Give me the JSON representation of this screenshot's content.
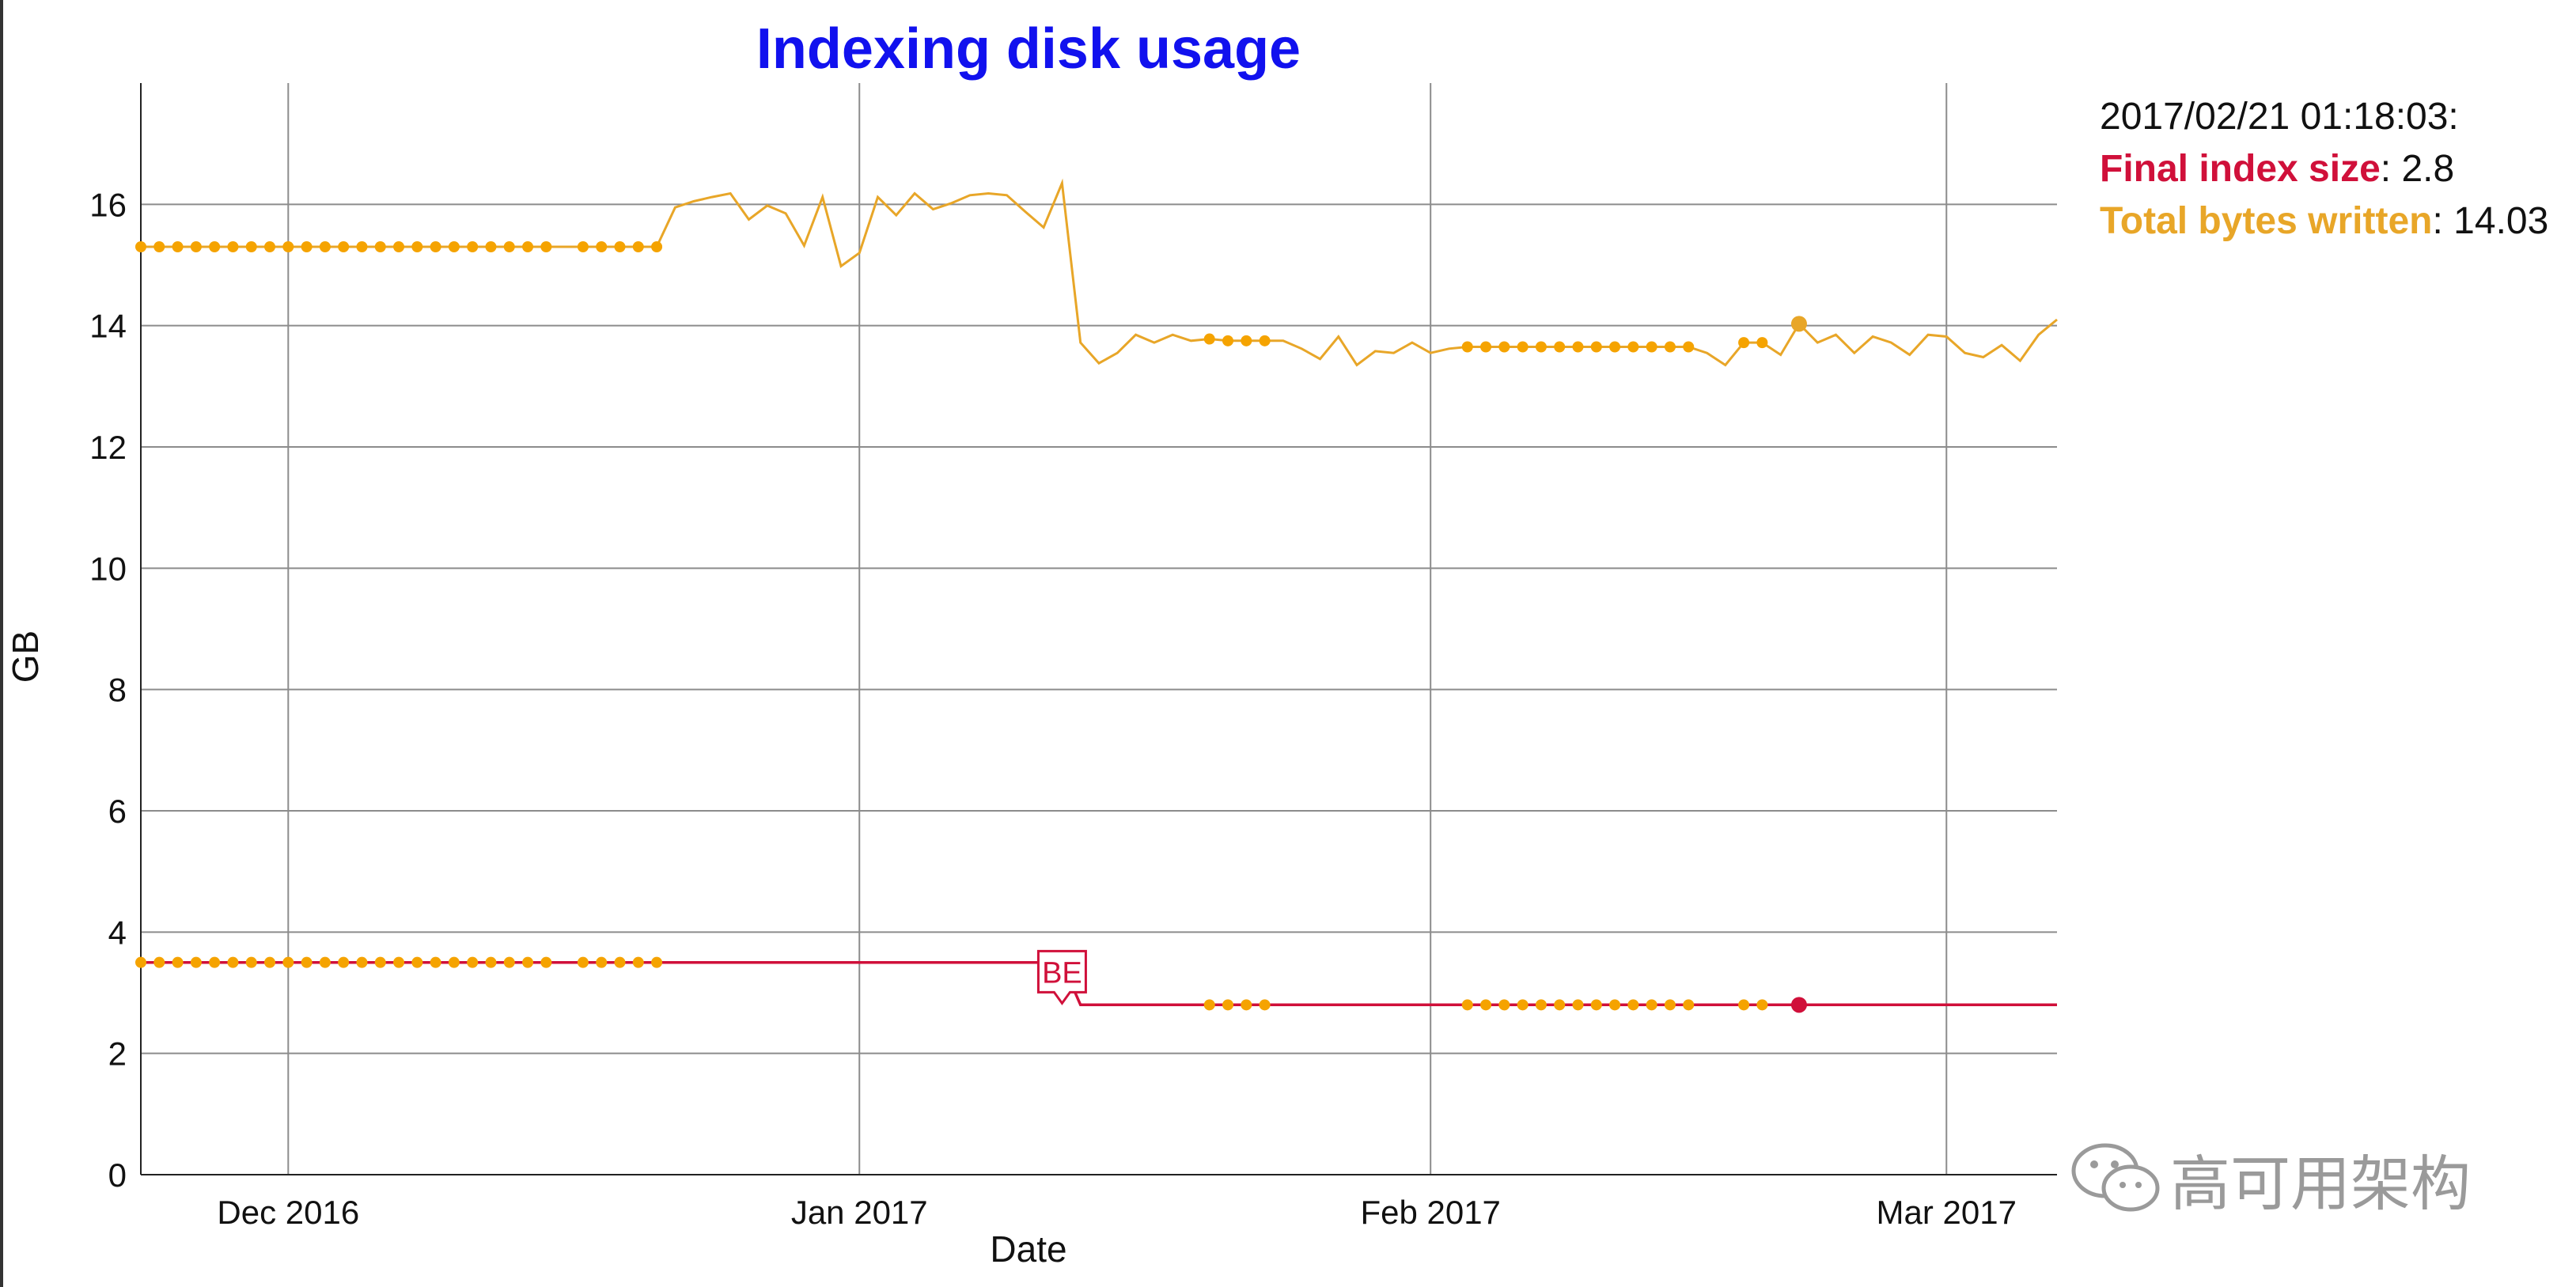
{
  "chart_data": {
    "type": "line",
    "title": "Indexing disk usage",
    "xlabel": "Date",
    "ylabel": "GB",
    "ylim": [
      0,
      18
    ],
    "yticks": [
      0,
      2,
      4,
      6,
      8,
      10,
      12,
      14,
      16
    ],
    "xlim": [
      "2016-11-23",
      "2017-03-07"
    ],
    "xticks": [
      {
        "date": "2016-12-01",
        "label": "Dec 2016"
      },
      {
        "date": "2017-01-01",
        "label": "Jan 2017"
      },
      {
        "date": "2017-02-01",
        "label": "Feb 2017"
      },
      {
        "date": "2017-03-01",
        "label": "Mar 2017"
      }
    ],
    "grid": true,
    "legend_position": "right",
    "series": [
      {
        "name": "Total bytes written",
        "color": "#e8a628",
        "dot_color": "#f5a300",
        "points": [
          [
            "2016-11-23",
            15.3
          ],
          [
            "2016-11-24",
            15.3
          ],
          [
            "2016-11-25",
            15.3
          ],
          [
            "2016-11-26",
            15.3
          ],
          [
            "2016-11-27",
            15.3
          ],
          [
            "2016-11-28",
            15.3
          ],
          [
            "2016-11-29",
            15.3
          ],
          [
            "2016-11-30",
            15.3
          ],
          [
            "2016-12-01",
            15.3
          ],
          [
            "2016-12-02",
            15.3
          ],
          [
            "2016-12-03",
            15.3
          ],
          [
            "2016-12-04",
            15.3
          ],
          [
            "2016-12-05",
            15.3
          ],
          [
            "2016-12-06",
            15.3
          ],
          [
            "2016-12-07",
            15.3
          ],
          [
            "2016-12-08",
            15.3
          ],
          [
            "2016-12-09",
            15.3
          ],
          [
            "2016-12-10",
            15.3
          ],
          [
            "2016-12-11",
            15.3
          ],
          [
            "2016-12-12",
            15.3
          ],
          [
            "2016-12-13",
            15.3
          ],
          [
            "2016-12-14",
            15.3
          ],
          [
            "2016-12-15",
            15.3
          ],
          [
            "2016-12-16",
            15.3
          ],
          [
            "2016-12-17",
            15.3
          ],
          [
            "2016-12-18",
            15.3
          ],
          [
            "2016-12-19",
            15.3
          ],
          [
            "2016-12-20",
            15.3
          ],
          [
            "2016-12-21",
            15.3
          ],
          [
            "2016-12-22",
            15.95
          ],
          [
            "2016-12-23",
            16.05
          ],
          [
            "2016-12-24",
            16.12
          ],
          [
            "2016-12-25",
            16.18
          ],
          [
            "2016-12-26",
            15.75
          ],
          [
            "2016-12-27",
            15.98
          ],
          [
            "2016-12-28",
            15.85
          ],
          [
            "2016-12-29",
            15.32
          ],
          [
            "2016-12-30",
            16.12
          ],
          [
            "2016-12-31",
            14.98
          ],
          [
            "2017-01-01",
            15.2
          ],
          [
            "2017-01-02",
            16.12
          ],
          [
            "2017-01-03",
            15.82
          ],
          [
            "2017-01-04",
            16.18
          ],
          [
            "2017-01-05",
            15.92
          ],
          [
            "2017-01-06",
            16.02
          ],
          [
            "2017-01-07",
            16.15
          ],
          [
            "2017-01-08",
            16.18
          ],
          [
            "2017-01-09",
            16.15
          ],
          [
            "2017-01-10",
            15.88
          ],
          [
            "2017-01-11",
            15.62
          ],
          [
            "2017-01-12",
            16.35
          ],
          [
            "2017-01-13",
            13.72
          ],
          [
            "2017-01-14",
            13.38
          ],
          [
            "2017-01-15",
            13.55
          ],
          [
            "2017-01-16",
            13.85
          ],
          [
            "2017-01-17",
            13.72
          ],
          [
            "2017-01-18",
            13.85
          ],
          [
            "2017-01-19",
            13.75
          ],
          [
            "2017-01-20",
            13.78
          ],
          [
            "2017-01-21",
            13.75
          ],
          [
            "2017-01-22",
            13.75
          ],
          [
            "2017-01-23",
            13.75
          ],
          [
            "2017-01-24",
            13.75
          ],
          [
            "2017-01-25",
            13.62
          ],
          [
            "2017-01-26",
            13.45
          ],
          [
            "2017-01-27",
            13.82
          ],
          [
            "2017-01-28",
            13.35
          ],
          [
            "2017-01-29",
            13.58
          ],
          [
            "2017-01-30",
            13.55
          ],
          [
            "2017-01-31",
            13.72
          ],
          [
            "2017-02-01",
            13.55
          ],
          [
            "2017-02-02",
            13.62
          ],
          [
            "2017-02-03",
            13.65
          ],
          [
            "2017-02-04",
            13.65
          ],
          [
            "2017-02-05",
            13.65
          ],
          [
            "2017-02-06",
            13.65
          ],
          [
            "2017-02-07",
            13.65
          ],
          [
            "2017-02-08",
            13.65
          ],
          [
            "2017-02-09",
            13.65
          ],
          [
            "2017-02-10",
            13.65
          ],
          [
            "2017-02-11",
            13.65
          ],
          [
            "2017-02-12",
            13.65
          ],
          [
            "2017-02-13",
            13.65
          ],
          [
            "2017-02-14",
            13.65
          ],
          [
            "2017-02-15",
            13.65
          ],
          [
            "2017-02-16",
            13.55
          ],
          [
            "2017-02-17",
            13.35
          ],
          [
            "2017-02-18",
            13.72
          ],
          [
            "2017-02-19",
            13.72
          ],
          [
            "2017-02-20",
            13.52
          ],
          [
            "2017-02-21",
            14.03
          ],
          [
            "2017-02-22",
            13.72
          ],
          [
            "2017-02-23",
            13.85
          ],
          [
            "2017-02-24",
            13.55
          ],
          [
            "2017-02-25",
            13.82
          ],
          [
            "2017-02-26",
            13.72
          ],
          [
            "2017-02-27",
            13.52
          ],
          [
            "2017-02-28",
            13.85
          ],
          [
            "2017-03-01",
            13.82
          ],
          [
            "2017-03-02",
            13.55
          ],
          [
            "2017-03-03",
            13.48
          ],
          [
            "2017-03-04",
            13.68
          ],
          [
            "2017-03-05",
            13.42
          ],
          [
            "2017-03-06",
            13.85
          ],
          [
            "2017-03-07",
            14.1
          ]
        ]
      },
      {
        "name": "Final index size",
        "color": "#d0103a",
        "dot_color": "#f5a300",
        "points": [
          [
            "2016-11-23",
            3.5
          ],
          [
            "2016-12-22",
            3.5
          ],
          [
            "2017-01-12",
            3.5
          ],
          [
            "2017-01-13",
            2.8
          ],
          [
            "2017-03-07",
            2.8
          ]
        ]
      }
    ],
    "markers": {
      "top_dates": [
        "2016-11-23",
        "2016-11-24",
        "2016-11-25",
        "2016-11-26",
        "2016-11-27",
        "2016-11-28",
        "2016-11-29",
        "2016-11-30",
        "2016-12-01",
        "2016-12-02",
        "2016-12-03",
        "2016-12-04",
        "2016-12-05",
        "2016-12-06",
        "2016-12-07",
        "2016-12-08",
        "2016-12-09",
        "2016-12-10",
        "2016-12-11",
        "2016-12-12",
        "2016-12-13",
        "2016-12-14",
        "2016-12-15",
        "2016-12-17",
        "2016-12-18",
        "2016-12-19",
        "2016-12-20",
        "2016-12-21",
        "2017-01-20",
        "2017-01-21",
        "2017-01-22",
        "2017-01-23",
        "2017-02-03",
        "2017-02-04",
        "2017-02-05",
        "2017-02-06",
        "2017-02-07",
        "2017-02-08",
        "2017-02-09",
        "2017-02-10",
        "2017-02-11",
        "2017-02-12",
        "2017-02-13",
        "2017-02-14",
        "2017-02-15",
        "2017-02-18",
        "2017-02-19"
      ],
      "bottom_dates": [
        "2016-11-23",
        "2016-11-24",
        "2016-11-25",
        "2016-11-26",
        "2016-11-27",
        "2016-11-28",
        "2016-11-29",
        "2016-11-30",
        "2016-12-01",
        "2016-12-02",
        "2016-12-03",
        "2016-12-04",
        "2016-12-05",
        "2016-12-06",
        "2016-12-07",
        "2016-12-08",
        "2016-12-09",
        "2016-12-10",
        "2016-12-11",
        "2016-12-12",
        "2016-12-13",
        "2016-12-14",
        "2016-12-15",
        "2016-12-17",
        "2016-12-18",
        "2016-12-19",
        "2016-12-20",
        "2016-12-21",
        "2017-01-20",
        "2017-01-21",
        "2017-01-22",
        "2017-01-23",
        "2017-02-03",
        "2017-02-04",
        "2017-02-05",
        "2017-02-06",
        "2017-02-07",
        "2017-02-08",
        "2017-02-09",
        "2017-02-10",
        "2017-02-11",
        "2017-02-12",
        "2017-02-13",
        "2017-02-14",
        "2017-02-15",
        "2017-02-18",
        "2017-02-19"
      ],
      "highlight": {
        "date": "2017-02-21",
        "top_value": 14.03,
        "bottom_value": 2.8
      }
    },
    "annotation": {
      "text": "BE",
      "date": "2017-01-12",
      "value": 2.8,
      "color": "#d0103a"
    }
  },
  "legend": {
    "timestamp": "2017/02/21 01:18:03:",
    "items": [
      {
        "name": "Final index size",
        "color": "#d0103a",
        "value": "2.8"
      },
      {
        "name": "Total bytes written",
        "color": "#e8a628",
        "value": "14.03"
      }
    ]
  },
  "watermark": {
    "text": "高可用架构"
  }
}
